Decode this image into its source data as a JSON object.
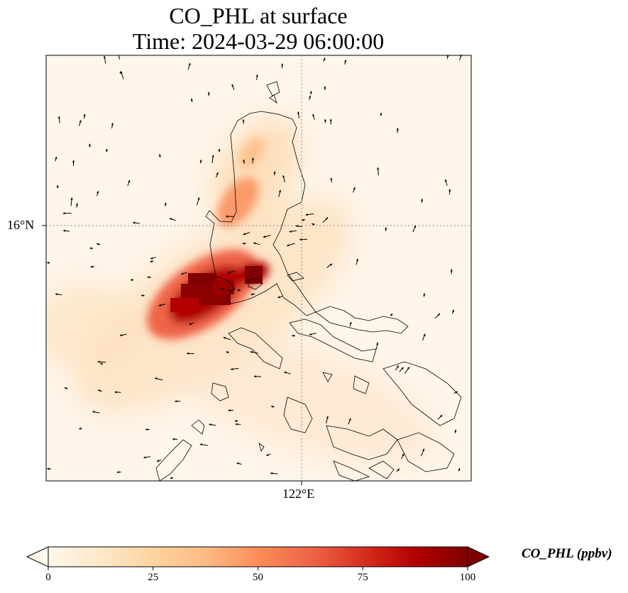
{
  "title": {
    "line1": "CO_PHL at surface",
    "line2": "Time: 2024-03-29 06:00:00"
  },
  "map": {
    "lat_label": "16°N",
    "lon_label": "122°E",
    "gridline_color": "#8c8c8c",
    "coastline_color": "#000000"
  },
  "colorbar": {
    "label": "CO_PHL (ppbv)",
    "ticks": [
      "0",
      "25",
      "50",
      "75",
      "100"
    ],
    "min": 0,
    "max": 100,
    "colormap": [
      "#fff7ec",
      "#fee8c8",
      "#fdd49e",
      "#fdbb84",
      "#fc8d59",
      "#ef6548",
      "#d7301f",
      "#b30000",
      "#7f0000"
    ],
    "extend": "both"
  }
}
